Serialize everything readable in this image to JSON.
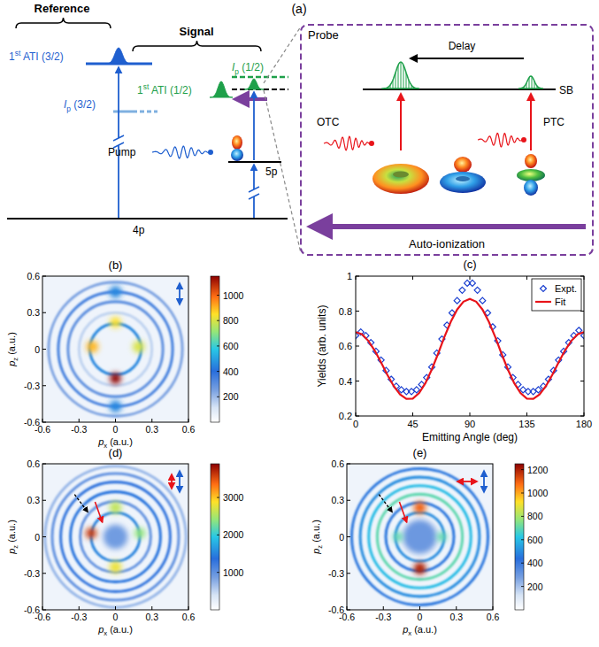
{
  "diagram": {
    "label": "(a)",
    "reference": "Reference",
    "signal": "Signal",
    "ati_ref": "1st ATI (3/2)",
    "ip_ref": "Ip (3/2)",
    "ati_sig": "1st ATI (1/2)",
    "ip_sig": "Ip (1/2)",
    "pump": "Pump",
    "level_5p": "5p",
    "level_4p": "4p",
    "probe": "Probe",
    "delay": "Delay",
    "sb": "SB",
    "otc": "OTC",
    "ptc": "PTC",
    "autoionization": "Auto-ionization"
  },
  "chart_data": {
    "type": "line",
    "title": "(c)",
    "xlabel": "Emitting Angle (deg)",
    "ylabel": "Yields (arb. units)",
    "xlim": [
      0,
      180
    ],
    "xticks": [
      0,
      45,
      90,
      135,
      180
    ],
    "ylim": [
      0.2,
      1
    ],
    "yticks": [
      0.2,
      0.4,
      0.6,
      0.8,
      1
    ],
    "grid": false,
    "legend": "top-right",
    "series": [
      {
        "name": "Expt.",
        "color": "#1a3fd0",
        "marker": "diamond",
        "line_style": "none",
        "x": [
          0,
          4,
          8,
          12,
          16,
          20,
          24,
          28,
          32,
          36,
          40,
          44,
          48,
          52,
          56,
          60,
          64,
          68,
          72,
          76,
          80,
          84,
          88,
          92,
          96,
          100,
          104,
          108,
          112,
          116,
          120,
          124,
          128,
          132,
          136,
          140,
          144,
          148,
          152,
          156,
          160,
          164,
          168,
          172,
          176,
          180
        ],
        "values": [
          0.66,
          0.68,
          0.66,
          0.62,
          0.57,
          0.52,
          0.46,
          0.41,
          0.37,
          0.35,
          0.34,
          0.34,
          0.35,
          0.38,
          0.42,
          0.48,
          0.56,
          0.64,
          0.72,
          0.79,
          0.86,
          0.92,
          0.96,
          0.96,
          0.92,
          0.86,
          0.79,
          0.71,
          0.63,
          0.55,
          0.48,
          0.42,
          0.38,
          0.35,
          0.34,
          0.34,
          0.35,
          0.37,
          0.41,
          0.46,
          0.52,
          0.57,
          0.62,
          0.66,
          0.69,
          0.66
        ]
      },
      {
        "name": "Fit",
        "color": "#e8141a",
        "marker": "none",
        "line_style": "solid",
        "x": [
          0,
          5,
          10,
          15,
          20,
          25,
          30,
          35,
          40,
          45,
          50,
          55,
          60,
          65,
          70,
          75,
          80,
          85,
          90,
          95,
          100,
          105,
          110,
          115,
          120,
          125,
          130,
          135,
          140,
          145,
          150,
          155,
          160,
          165,
          170,
          175,
          180
        ],
        "values": [
          0.68,
          0.667,
          0.63,
          0.574,
          0.506,
          0.435,
          0.371,
          0.323,
          0.298,
          0.3,
          0.331,
          0.388,
          0.466,
          0.557,
          0.652,
          0.739,
          0.809,
          0.854,
          0.87,
          0.854,
          0.809,
          0.739,
          0.652,
          0.557,
          0.466,
          0.388,
          0.331,
          0.3,
          0.298,
          0.323,
          0.371,
          0.435,
          0.506,
          0.574,
          0.63,
          0.667,
          0.68
        ]
      }
    ]
  },
  "images": [
    {
      "title": "(b)",
      "xlabel": "px (a.u.)",
      "ylabel": "pz (a.u.)",
      "xlim": [
        -0.6,
        0.6
      ],
      "xticks": [
        -0.6,
        -0.3,
        0,
        0.3,
        0.6
      ],
      "ylim": [
        -0.6,
        0.6
      ],
      "yticks": [
        -0.6,
        -0.3,
        0,
        0.3,
        0.6
      ],
      "colorbar": {
        "range": [
          0,
          1150
        ],
        "ticks": [
          200,
          400,
          600,
          800,
          1000
        ]
      },
      "rings": [
        {
          "r": 0.21,
          "intensity": 450
        },
        {
          "r": 0.3,
          "intensity": 150
        },
        {
          "r": 0.39,
          "intensity": 300
        },
        {
          "r": 0.47,
          "intensity": 350
        },
        {
          "r": 0.55,
          "intensity": 250
        }
      ],
      "spots": [
        {
          "px": 0,
          "pz": 0.47,
          "intensity": 450,
          "size": 0.05
        },
        {
          "px": 0,
          "pz": -0.47,
          "intensity": 450,
          "size": 0.05
        },
        {
          "px": -0.19,
          "pz": 0.02,
          "intensity": 900,
          "size": 0.05
        },
        {
          "px": 0.19,
          "pz": 0.02,
          "intensity": 800,
          "size": 0.05
        },
        {
          "px": 0,
          "pz": 0.22,
          "intensity": 850,
          "size": 0.045
        },
        {
          "px": 0,
          "pz": -0.24,
          "intensity": 1150,
          "size": 0.045
        }
      ]
    },
    {
      "title": "(d)",
      "xlabel": "px (a.u.)",
      "ylabel": "pz (a.u.)",
      "xlim": [
        -0.6,
        0.6
      ],
      "xticks": [
        -0.6,
        -0.3,
        0,
        0.3,
        0.6
      ],
      "ylim": [
        -0.6,
        0.6
      ],
      "yticks": [
        -0.6,
        -0.3,
        0,
        0.3,
        0.6
      ],
      "colorbar": {
        "range": [
          0,
          3900
        ],
        "ticks": [
          1000,
          2000,
          3000
        ]
      },
      "rings": [
        {
          "r": 0.2,
          "intensity": 1500
        },
        {
          "r": 0.29,
          "intensity": 1000
        },
        {
          "r": 0.37,
          "intensity": 1400
        },
        {
          "r": 0.45,
          "intensity": 1300
        },
        {
          "r": 0.52,
          "intensity": 1000
        },
        {
          "r": 0.58,
          "intensity": 700
        }
      ],
      "spots": [
        {
          "px": 0,
          "pz": 0,
          "intensity": 900,
          "size": 0.1
        },
        {
          "px": 0,
          "pz": 0.24,
          "intensity": 2600,
          "size": 0.05
        },
        {
          "px": 0,
          "pz": -0.25,
          "intensity": 2800,
          "size": 0.05
        },
        {
          "px": -0.2,
          "pz": 0.03,
          "intensity": 3600,
          "size": 0.045
        },
        {
          "px": 0.2,
          "pz": 0.03,
          "intensity": 2400,
          "size": 0.045
        }
      ]
    },
    {
      "title": "(e)",
      "xlabel": "px (a.u.)",
      "ylabel": "pz (a.u.)",
      "xlim": [
        -0.6,
        0.6
      ],
      "xticks": [
        -0.6,
        -0.3,
        0,
        0.3,
        0.6
      ],
      "ylim": [
        -0.6,
        0.6
      ],
      "yticks": [
        -0.6,
        -0.3,
        0,
        0.3,
        0.6
      ],
      "colorbar": {
        "range": [
          0,
          1250
        ],
        "ticks": [
          200,
          400,
          600,
          800,
          1000,
          1200
        ]
      },
      "rings": [
        {
          "r": 0.2,
          "intensity": 500
        },
        {
          "r": 0.28,
          "intensity": 450
        },
        {
          "r": 0.35,
          "intensity": 700
        },
        {
          "r": 0.42,
          "intensity": 600
        },
        {
          "r": 0.49,
          "intensity": 500
        },
        {
          "r": 0.56,
          "intensity": 450
        }
      ],
      "spots": [
        {
          "px": 0,
          "pz": 0,
          "intensity": 300,
          "size": 0.14
        },
        {
          "px": -0.18,
          "pz": 0,
          "intensity": 700,
          "size": 0.04
        },
        {
          "px": 0.18,
          "pz": 0,
          "intensity": 700,
          "size": 0.04
        },
        {
          "px": 0,
          "pz": 0.24,
          "intensity": 1100,
          "size": 0.05
        },
        {
          "px": 0,
          "pz": -0.26,
          "intensity": 1200,
          "size": 0.05
        }
      ]
    }
  ]
}
